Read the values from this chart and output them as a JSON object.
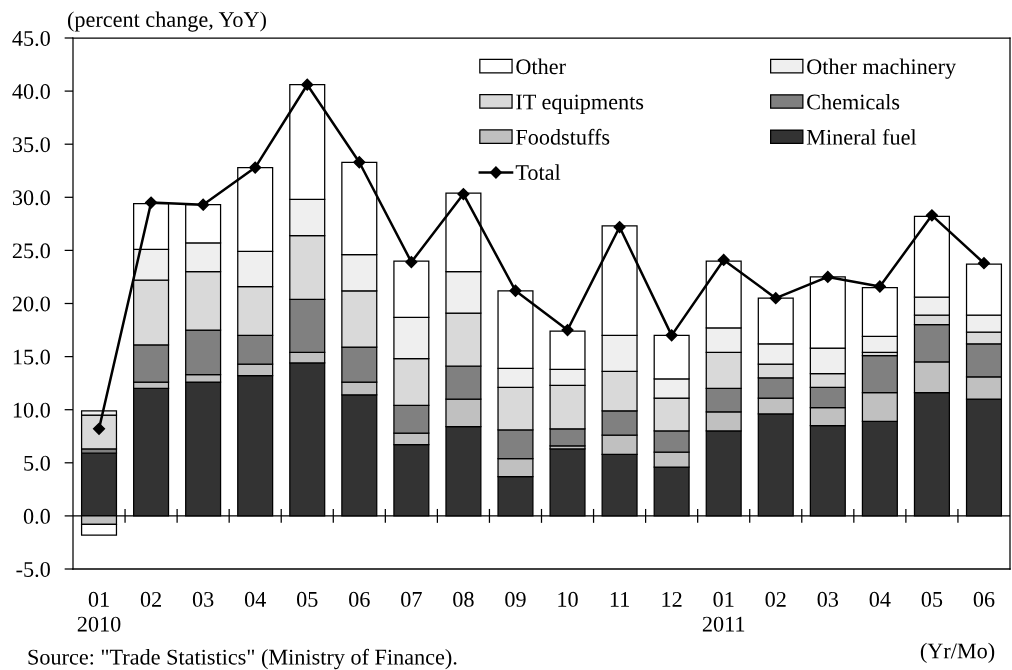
{
  "chart_data": {
    "type": "bar",
    "stacked": true,
    "ylabel": "(percent change, YoY)",
    "xlabel": "(Yr/Mo)",
    "categories": [
      "01\n2010",
      "02",
      "03",
      "04",
      "05",
      "06",
      "07",
      "08",
      "09",
      "10",
      "11",
      "12",
      "01\n2011",
      "02",
      "03",
      "04",
      "05",
      "06"
    ],
    "series": [
      {
        "name": "Mineral fuel",
        "color": "#333333",
        "values": [
          5.9,
          12.0,
          12.6,
          13.2,
          14.4,
          11.4,
          6.7,
          8.4,
          3.7,
          6.3,
          5.8,
          4.6,
          8.0,
          9.6,
          8.5,
          8.9,
          11.6,
          11.0
        ]
      },
      {
        "name": "Foodstuffs",
        "color": "#c0c0c0",
        "values": [
          -0.8,
          0.6,
          0.7,
          1.1,
          1.0,
          1.2,
          1.1,
          2.6,
          1.7,
          0.3,
          1.8,
          1.4,
          1.8,
          1.5,
          1.7,
          2.7,
          2.9,
          2.1
        ]
      },
      {
        "name": "Chemicals",
        "color": "#808080",
        "values": [
          0.4,
          3.5,
          4.2,
          2.7,
          5.0,
          3.3,
          2.6,
          3.1,
          2.7,
          1.6,
          2.3,
          2.0,
          2.2,
          1.9,
          1.9,
          3.5,
          3.5,
          3.1
        ]
      },
      {
        "name": "IT equipments",
        "color": "#d9d9d9",
        "values": [
          3.2,
          6.1,
          5.5,
          4.6,
          6.0,
          5.3,
          4.4,
          5.0,
          4.0,
          4.1,
          3.7,
          3.1,
          3.4,
          1.3,
          1.3,
          0.3,
          0.9,
          1.1
        ]
      },
      {
        "name": "Other machinery",
        "color": "#efefef",
        "values": [
          0.4,
          2.9,
          2.7,
          3.3,
          3.4,
          3.4,
          3.9,
          3.9,
          1.8,
          1.5,
          3.4,
          1.8,
          2.3,
          1.9,
          2.4,
          1.5,
          1.7,
          1.6
        ]
      },
      {
        "name": "Other",
        "color": "#ffffff",
        "values": [
          -1.0,
          4.3,
          3.6,
          7.9,
          10.8,
          8.7,
          5.3,
          7.4,
          7.3,
          3.6,
          10.3,
          4.1,
          6.3,
          4.3,
          6.7,
          4.6,
          7.6,
          4.8
        ]
      },
      {
        "name": "Total",
        "type": "line",
        "color": "#000000",
        "marker": "diamond",
        "values": [
          8.2,
          29.5,
          29.3,
          32.8,
          40.6,
          33.3,
          23.9,
          30.3,
          21.2,
          17.5,
          27.2,
          17.0,
          24.1,
          20.5,
          22.5,
          21.6,
          28.3,
          23.8
        ]
      }
    ],
    "ylim": [
      -5,
      45
    ],
    "yticks": [
      {
        "value": -5,
        "label": "-5.0"
      },
      {
        "value": 0,
        "label": "0.0"
      },
      {
        "value": 5,
        "label": "5.0"
      },
      {
        "value": 10,
        "label": "10.0"
      },
      {
        "value": 15,
        "label": "15.0"
      },
      {
        "value": 20,
        "label": "20.0"
      },
      {
        "value": 25,
        "label": "25.0"
      },
      {
        "value": 30,
        "label": "30.0"
      },
      {
        "value": 35,
        "label": "35.0"
      },
      {
        "value": 40,
        "label": "40.0"
      },
      {
        "value": 45,
        "label": "45.0"
      }
    ],
    "ref_lines": [
      {
        "axis": "y",
        "value": 0
      }
    ],
    "legend": "top right",
    "grid": false,
    "annotations": [
      "Source: \"Trade Statistics\" (Ministry of Finance)."
    ]
  }
}
